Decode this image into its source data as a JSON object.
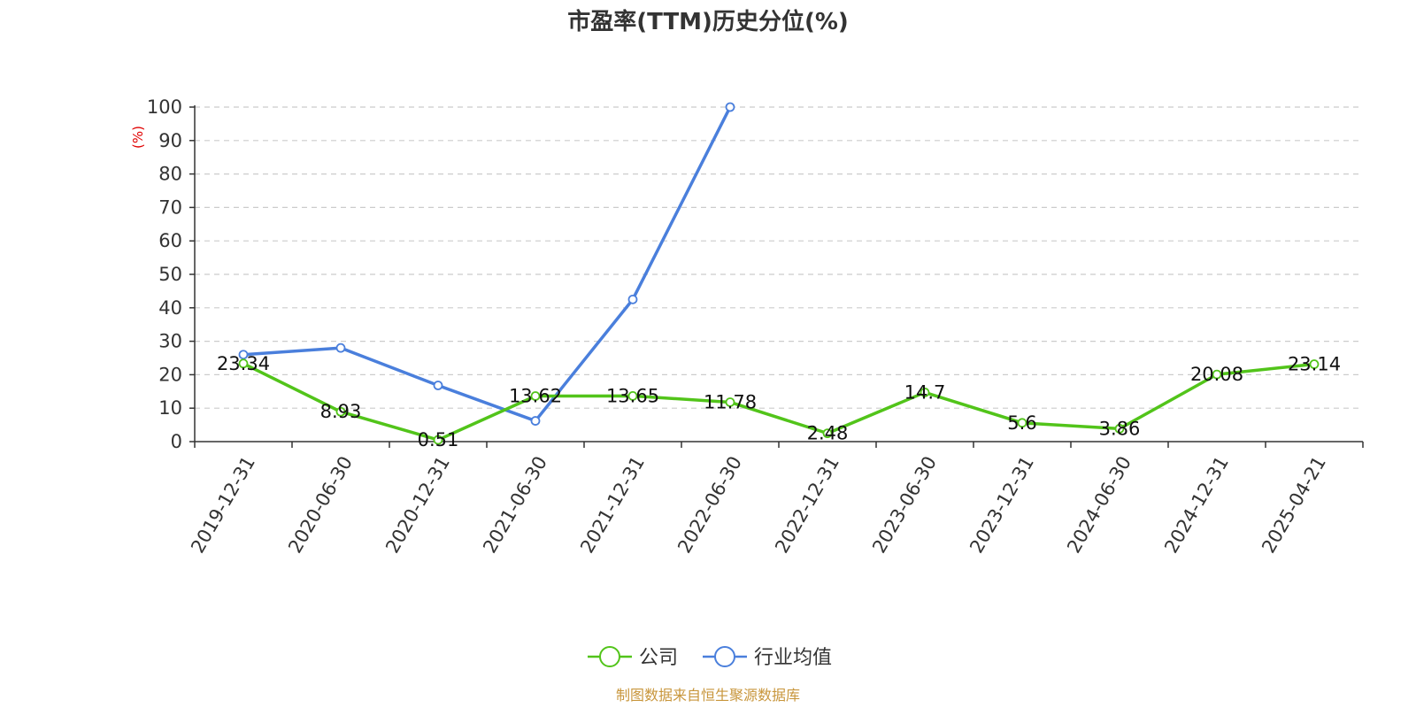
{
  "chart_data": {
    "type": "line",
    "title": "市盈率(TTM)历史分位(%)",
    "ylabel": "(%)",
    "xlabel": "",
    "ylim": [
      0,
      100
    ],
    "yticks": [
      0,
      10,
      20,
      30,
      40,
      50,
      60,
      70,
      80,
      90,
      100
    ],
    "grid": true,
    "legend_position": "bottom-center",
    "categories": [
      "2019-12-31",
      "2020-06-30",
      "2020-12-31",
      "2021-06-30",
      "2021-12-31",
      "2022-06-30",
      "2022-12-31",
      "2023-06-30",
      "2023-12-31",
      "2024-06-30",
      "2024-12-31",
      "2025-04-21"
    ],
    "series": [
      {
        "name": "公司",
        "color": "#52c41a",
        "values": [
          23.34,
          8.93,
          0.51,
          13.62,
          13.65,
          11.78,
          2.48,
          14.7,
          5.6,
          3.86,
          20.08,
          23.14
        ],
        "labels": [
          "23.34",
          "8.93",
          "0.51",
          "13.62",
          "13.65",
          "11.78",
          "2.48",
          "14.7",
          "5.6",
          "3.86",
          "20.08",
          "23.14"
        ]
      },
      {
        "name": "行业均值",
        "color": "#4a7fdc",
        "values": [
          26.0,
          28.0,
          16.8,
          6.2,
          42.5,
          100.0,
          null,
          null,
          null,
          null,
          null,
          null
        ]
      }
    ],
    "source": "制图数据来自恒生聚源数据库"
  }
}
